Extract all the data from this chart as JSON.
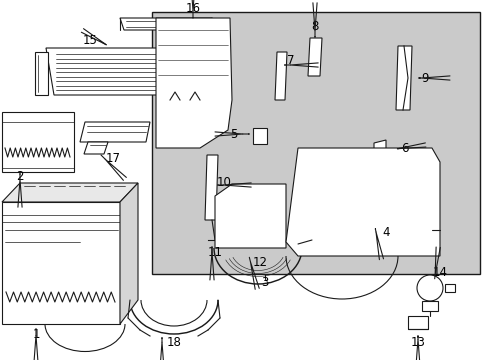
{
  "bg_color": "#ffffff",
  "panel_bg": "#d0d0d0",
  "lc": "#1a1a1a",
  "lw": 0.8,
  "fs": 8.5
}
